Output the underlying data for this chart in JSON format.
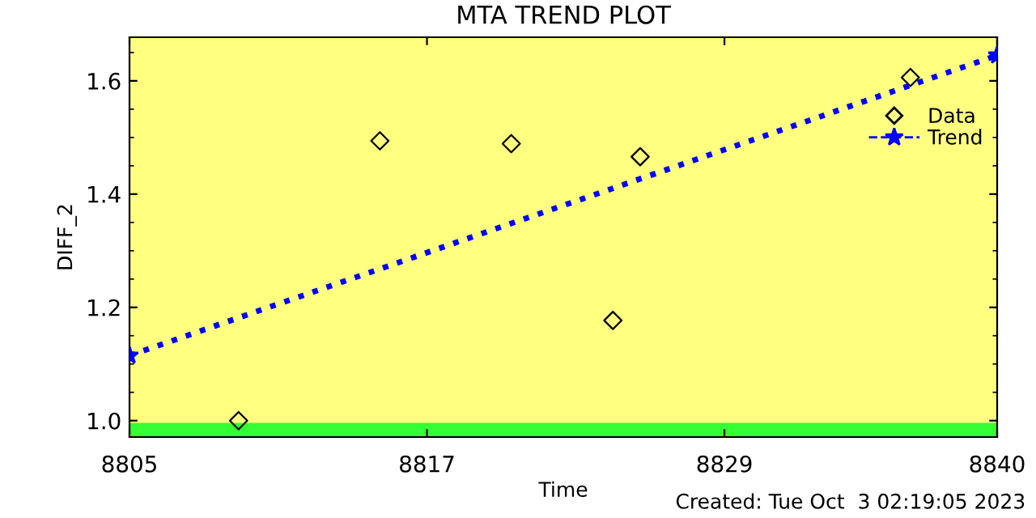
{
  "chart_data": {
    "type": "scatter",
    "title": "MTA TREND PLOT",
    "xlabel": "Time",
    "ylabel": "DIFF_2",
    "series": [
      {
        "name": "Data",
        "color": "#000000",
        "marker": "diamond",
        "x": [
          8809.4,
          8815.1,
          8820.4,
          8824.5,
          8825.6,
          8836.5
        ],
        "values": [
          1.0,
          1.494,
          1.489,
          1.177,
          1.466,
          1.606
        ]
      },
      {
        "name": "Trend",
        "type": "line",
        "color": "#0000ff",
        "marker": "star",
        "line_style": "dotted",
        "x": [
          8805,
          8840
        ],
        "values": [
          1.115,
          1.645
        ]
      }
    ],
    "xlim": [
      8805,
      8840
    ],
    "xticks": [
      8805,
      8817,
      8829,
      8840
    ],
    "ylim": [
      0.971,
      1.677
    ],
    "yticks": [
      {
        "value": 1.0,
        "label": "1.0"
      },
      {
        "value": 1.2,
        "label": "1.2"
      },
      {
        "value": 1.4,
        "label": "1.4"
      },
      {
        "value": 1.6,
        "label": "1.6"
      }
    ],
    "bands": [
      {
        "axis": "y",
        "from": 0.971,
        "to": 0.996,
        "color": "#33ff33"
      }
    ],
    "legend": "top right",
    "grid": false,
    "annotations": [
      "Created: Tue Oct  3 02:19:05 2023"
    ]
  }
}
